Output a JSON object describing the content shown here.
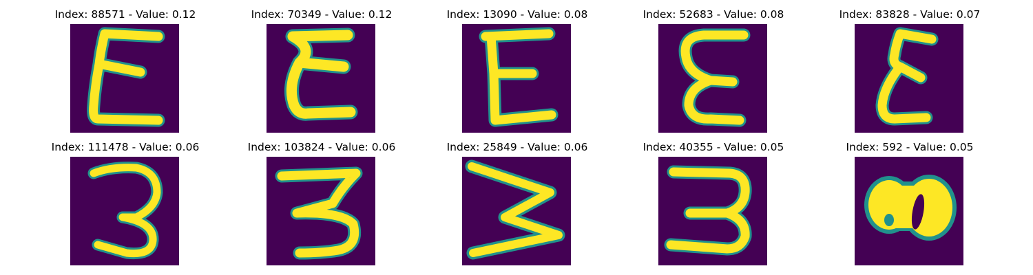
{
  "figure": {
    "colors": {
      "background": "#440154",
      "stroke": "#fde725",
      "edge": "#21918c"
    },
    "panels": [
      {
        "title": "Index: 88571 - Value: 0.12",
        "glyph": "E"
      },
      {
        "title": "Index: 70349 - Value: 0.12",
        "glyph": "E"
      },
      {
        "title": "Index: 13090 - Value: 0.08",
        "glyph": "E"
      },
      {
        "title": "Index: 52683 - Value: 0.08",
        "glyph": "E"
      },
      {
        "title": "Index: 83828 - Value: 0.07",
        "glyph": "E"
      },
      {
        "title": "Index: 111478 - Value: 0.06",
        "glyph": "3"
      },
      {
        "title": "Index: 103824 - Value: 0.06",
        "glyph": "3"
      },
      {
        "title": "Index: 25849 - Value: 0.06",
        "glyph": "W"
      },
      {
        "title": "Index: 40355 - Value: 0.05",
        "glyph": "3"
      },
      {
        "title": "Index: 592 - Value: 0.05",
        "glyph": "8"
      }
    ]
  }
}
